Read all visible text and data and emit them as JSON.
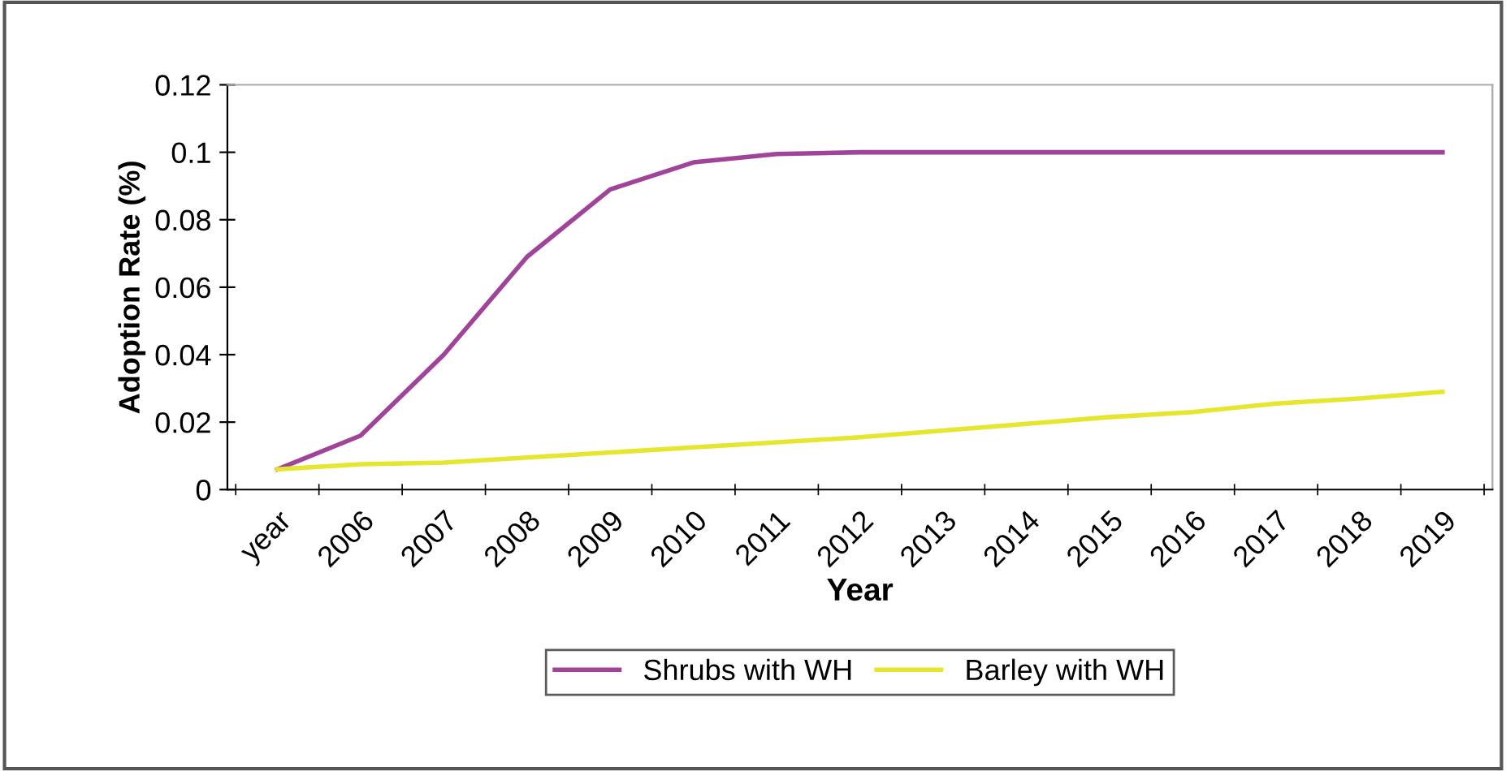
{
  "chart_data": {
    "type": "line",
    "xlabel": "Year",
    "ylabel": "Adoption Rate (%)",
    "categories": [
      "year",
      "2006",
      "2007",
      "2008",
      "2009",
      "2010",
      "2011",
      "2012",
      "2013",
      "2014",
      "2015",
      "2016",
      "2017",
      "2018",
      "2019"
    ],
    "series": [
      {
        "name": "Shrubs with WH",
        "color": "#a0449a",
        "values": [
          0.006,
          0.016,
          0.04,
          0.069,
          0.089,
          0.097,
          0.0995,
          0.1,
          0.1,
          0.1,
          0.1,
          0.1,
          0.1,
          0.1,
          0.1
        ]
      },
      {
        "name": "Barley with WH",
        "color": "#e6e62e",
        "values": [
          0.006,
          0.0075,
          0.008,
          0.0095,
          0.011,
          0.0125,
          0.014,
          0.0155,
          0.0175,
          0.0195,
          0.0215,
          0.023,
          0.0255,
          0.027,
          0.029
        ]
      }
    ],
    "ylim": [
      0,
      0.12
    ],
    "yticks": [
      0,
      0.02,
      0.04,
      0.06,
      0.08,
      0.1,
      0.12
    ],
    "grid": false,
    "legend": "bottom",
    "marker": "none",
    "line_style": "solid"
  }
}
